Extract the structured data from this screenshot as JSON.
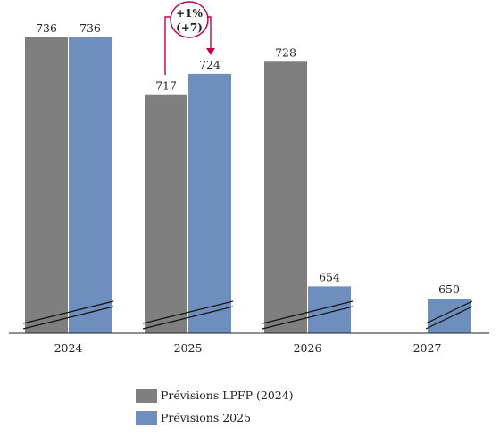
{
  "chart_data": {
    "type": "bar",
    "categories": [
      "2024",
      "2025",
      "2026",
      "2027"
    ],
    "series": [
      {
        "name": "Prévisions LPFP (2024)",
        "color": "#7f7f7f",
        "values": [
          736,
          717,
          728,
          null
        ]
      },
      {
        "name": "Prévisions 2025",
        "color": "#6e8fbd",
        "values": [
          736,
          724,
          654,
          650
        ]
      }
    ],
    "value_labels": {
      "s0": [
        "736",
        "717",
        "728",
        ""
      ],
      "s1": [
        "736",
        "724",
        "654",
        "650"
      ]
    },
    "axis_break": true,
    "annotation": {
      "line1": "+1%",
      "line2": "(+7)",
      "color": "#c0004f"
    },
    "legend_position": "bottom",
    "grid": false
  }
}
